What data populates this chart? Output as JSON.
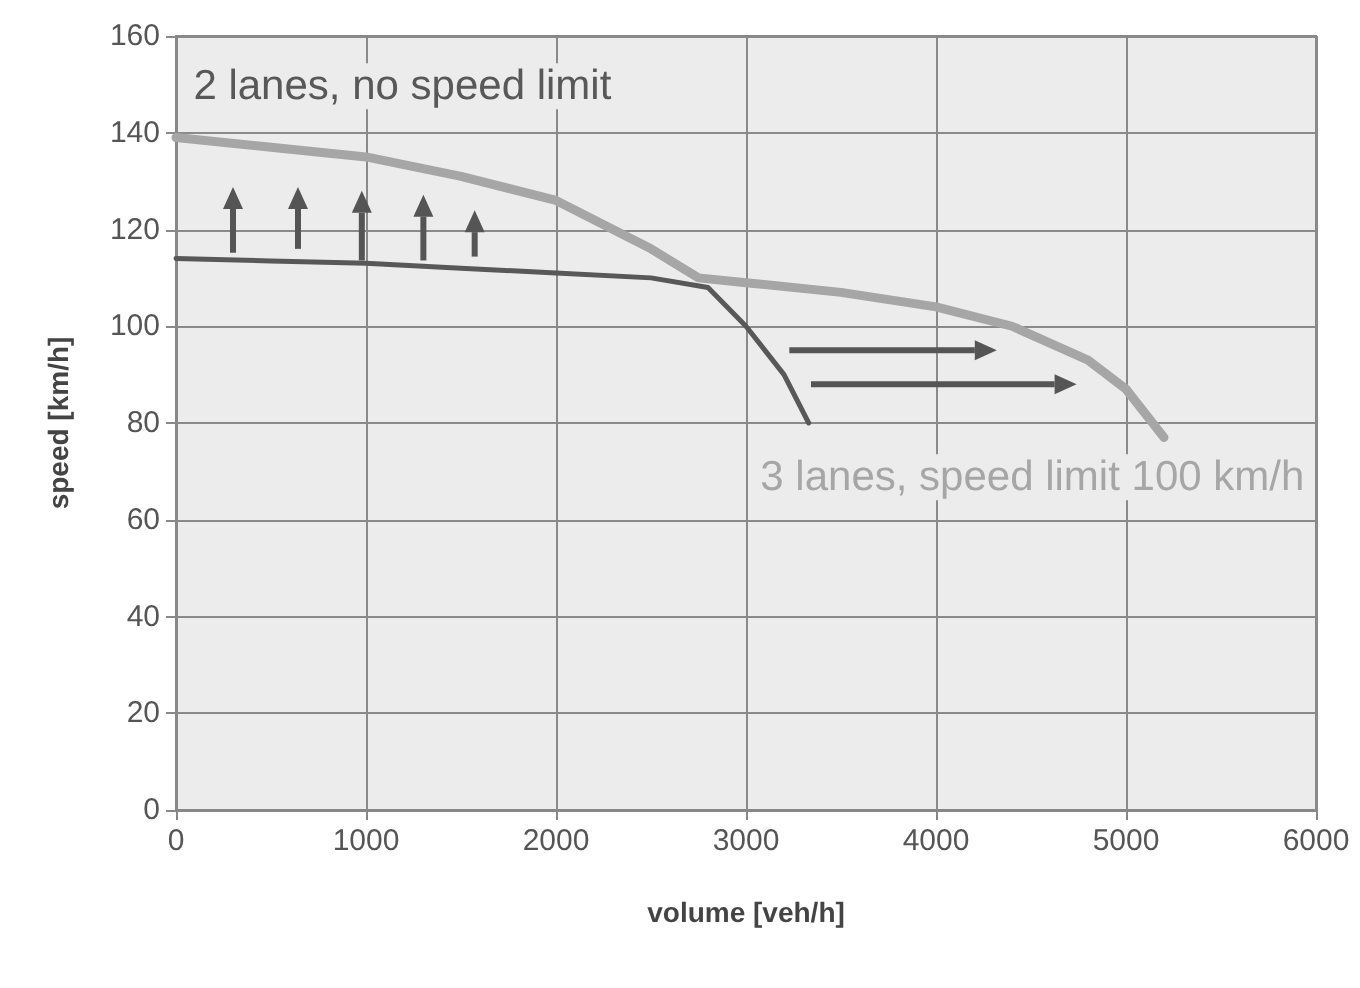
{
  "chart_data": {
    "type": "line",
    "xlabel": "volume [veh/h]",
    "ylabel": "speed [km/h]",
    "xlim": [
      0,
      6000
    ],
    "xticks": [
      0,
      1000,
      2000,
      3000,
      4000,
      5000,
      6000
    ],
    "ylim": [
      0,
      160
    ],
    "yticks": [
      0,
      20,
      40,
      60,
      80,
      100,
      120,
      140,
      160
    ],
    "grid": true,
    "legend": false,
    "marker": "none",
    "line_style": "solid",
    "series": [
      {
        "name": "2 lanes, no speed limit",
        "color": "#585858",
        "x": [
          0,
          500,
          1000,
          1500,
          2000,
          2500,
          2800,
          3000,
          3200,
          3330
        ],
        "values": [
          114,
          113.5,
          113,
          112,
          111,
          110,
          108,
          100,
          90,
          80
        ]
      },
      {
        "name": "3 lanes, speed limit 100 km/h",
        "color": "#a6a6a6",
        "x": [
          0,
          500,
          1000,
          1500,
          2000,
          2500,
          2750,
          3000,
          3500,
          4000,
          4400,
          4800,
          5000,
          5200
        ],
        "values": [
          139,
          137,
          135,
          131,
          126,
          116,
          110,
          109,
          107,
          104,
          100,
          93,
          87,
          77
        ]
      }
    ]
  }
}
